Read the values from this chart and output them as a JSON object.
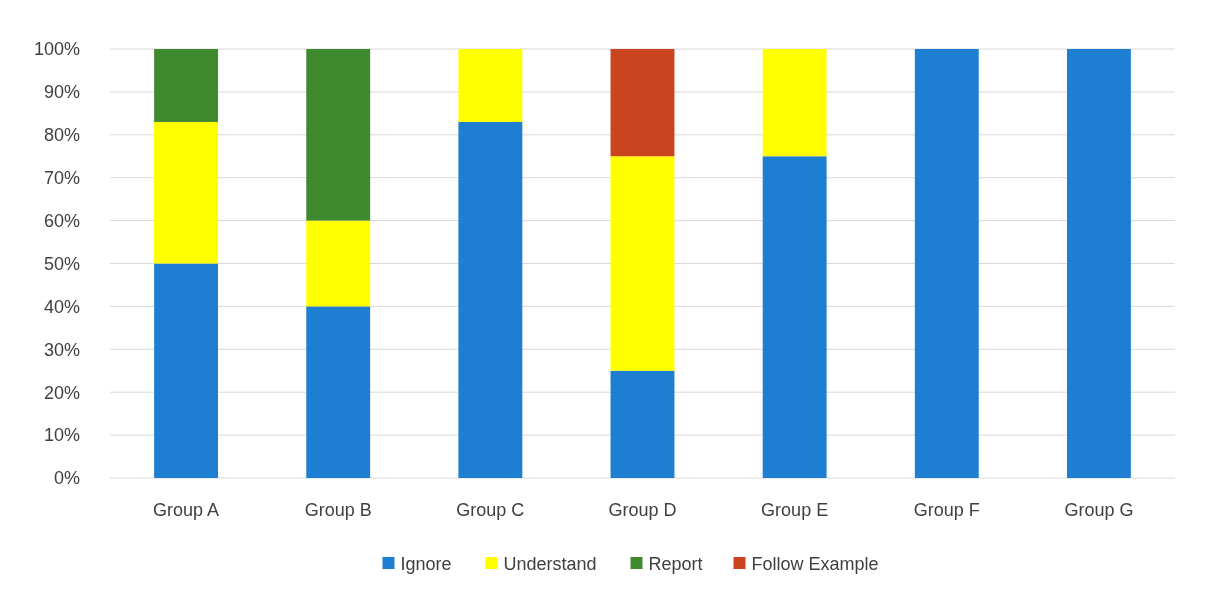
{
  "chart_data": {
    "type": "bar",
    "stacked": true,
    "categories": [
      "Group A",
      "Group B",
      "Group C",
      "Group D",
      "Group E",
      "Group F",
      "Group G"
    ],
    "series": [
      {
        "name": "Ignore",
        "color": "#1e7fd2",
        "values": [
          50,
          40,
          83,
          25,
          75,
          100,
          100
        ]
      },
      {
        "name": "Understand",
        "color": "#ffff00",
        "values": [
          33,
          20,
          17,
          50,
          25,
          0,
          0
        ]
      },
      {
        "name": "Report",
        "color": "#3f8a2f",
        "values": [
          17,
          40,
          0,
          0,
          0,
          0,
          0
        ]
      },
      {
        "name": "Follow Example",
        "color": "#c9441f",
        "values": [
          0,
          0,
          0,
          25,
          0,
          0,
          0
        ]
      }
    ],
    "ylim": [
      0,
      100
    ],
    "yticks": [
      {
        "value": 0,
        "label": "0%"
      },
      {
        "value": 10,
        "label": "10%"
      },
      {
        "value": 20,
        "label": "20%"
      },
      {
        "value": 30,
        "label": "30%"
      },
      {
        "value": 40,
        "label": "40%"
      },
      {
        "value": 50,
        "label": "50%"
      },
      {
        "value": 60,
        "label": "60%"
      },
      {
        "value": 70,
        "label": "70%"
      },
      {
        "value": 80,
        "label": "80%"
      },
      {
        "value": 90,
        "label": "90%"
      },
      {
        "value": 100,
        "label": "100%"
      }
    ],
    "grid": "y",
    "legend": "bottom"
  }
}
